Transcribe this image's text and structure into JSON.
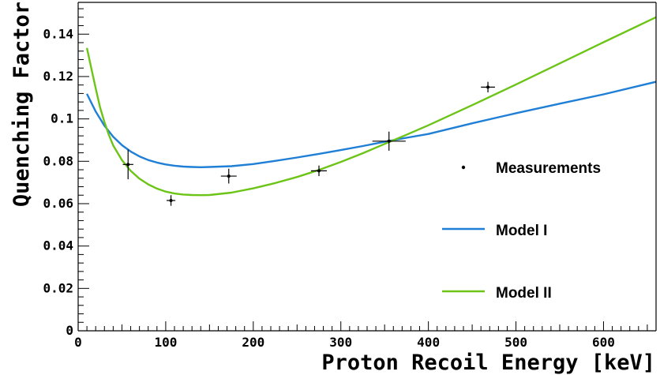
{
  "chart_data": {
    "type": "line",
    "title": "",
    "xlabel": "Proton Recoil Energy [keV]",
    "ylabel": "Quenching Factor",
    "xlim": [
      0,
      660
    ],
    "ylim": [
      0,
      0.155
    ],
    "x_ticks": [
      0,
      100,
      200,
      300,
      400,
      500,
      600
    ],
    "x_tick_labels": [
      "0",
      "100",
      "200",
      "300",
      "400",
      "500",
      "600"
    ],
    "y_ticks": [
      0,
      0.02,
      0.04,
      0.06,
      0.08,
      0.1,
      0.12,
      0.14
    ],
    "y_tick_labels": [
      "0",
      "0.02",
      "0.04",
      "0.06",
      "0.08",
      "0.1",
      "0.12",
      "0.14"
    ],
    "grid": false,
    "legend_position": "right",
    "series": [
      {
        "name": "Measurements",
        "kind": "scatter-errorbars",
        "color": "#000000",
        "points": [
          {
            "x": 57,
            "y": 0.0785,
            "x_err": 6,
            "y_err": 0.007
          },
          {
            "x": 106,
            "y": 0.0615,
            "x_err": 5,
            "y_err": 0.0025
          },
          {
            "x": 172,
            "y": 0.073,
            "x_err": 9,
            "y_err": 0.0035
          },
          {
            "x": 275,
            "y": 0.0755,
            "x_err": 9,
            "y_err": 0.0025
          },
          {
            "x": 355,
            "y": 0.0895,
            "x_err": 19,
            "y_err": 0.0045
          },
          {
            "x": 468,
            "y": 0.115,
            "x_err": 8,
            "y_err": 0.0025
          }
        ]
      },
      {
        "name": "Model I",
        "kind": "line",
        "color": "#1f7fd6",
        "x": [
          10,
          20,
          30,
          40,
          50,
          60,
          70,
          80,
          90,
          100,
          110,
          120,
          130,
          140,
          150,
          175,
          200,
          225,
          250,
          275,
          300,
          325,
          350,
          375,
          400,
          450,
          500,
          550,
          600,
          660
        ],
        "y": [
          0.1118,
          0.1035,
          0.0968,
          0.0916,
          0.0876,
          0.0846,
          0.0823,
          0.0806,
          0.0794,
          0.0785,
          0.0779,
          0.0775,
          0.0773,
          0.0772,
          0.0773,
          0.0777,
          0.0787,
          0.0802,
          0.0818,
          0.0835,
          0.0853,
          0.0872,
          0.0892,
          0.0911,
          0.0929,
          0.0979,
          0.1027,
          0.1072,
          0.1116,
          0.1175
        ]
      },
      {
        "name": "Model II",
        "kind": "line",
        "color": "#6cc417",
        "x": [
          10,
          15,
          20,
          25,
          30,
          35,
          40,
          50,
          60,
          70,
          80,
          90,
          100,
          110,
          120,
          130,
          140,
          150,
          175,
          200,
          225,
          250,
          275,
          300,
          325,
          350,
          375,
          400,
          450,
          500,
          550,
          600,
          660
        ],
        "y": [
          0.1335,
          0.124,
          0.1145,
          0.1055,
          0.0985,
          0.0925,
          0.0875,
          0.0805,
          0.0755,
          0.0718,
          0.0691,
          0.0671,
          0.0657,
          0.0648,
          0.0643,
          0.0641,
          0.064,
          0.0641,
          0.0652,
          0.0672,
          0.0697,
          0.0726,
          0.0759,
          0.0797,
          0.0838,
          0.0882,
          0.0925,
          0.097,
          0.1065,
          0.1162,
          0.1262,
          0.1362,
          0.148
        ]
      }
    ],
    "legend": [
      {
        "label": "Measurements",
        "marker": "dot",
        "color": "#000000"
      },
      {
        "label": "Model I",
        "marker": "line",
        "color": "#1f7fd6"
      },
      {
        "label": "Model II",
        "marker": "line",
        "color": "#6cc417"
      }
    ]
  }
}
